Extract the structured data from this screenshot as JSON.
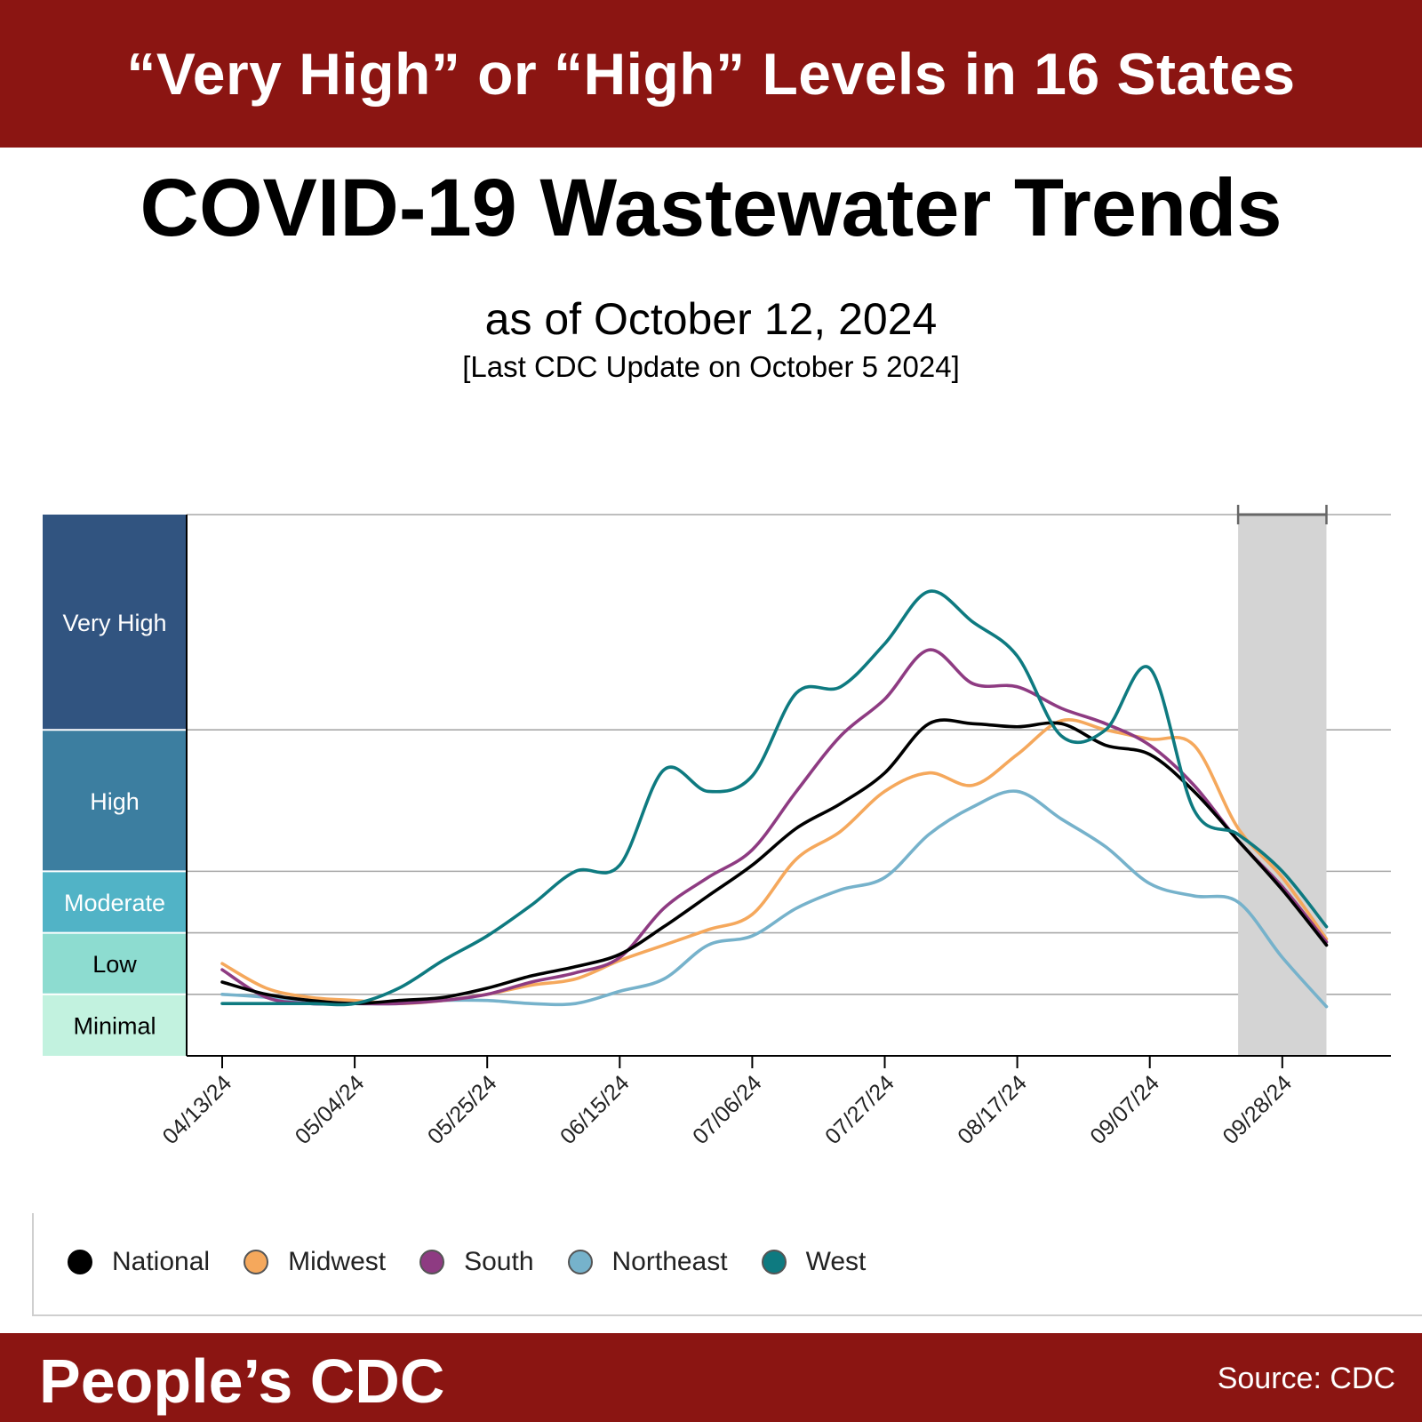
{
  "header": {
    "banner": "“Very High” or “High” Levels in 16 States"
  },
  "title": "COVID-19 Wastewater Trends",
  "subtitle": "as of October 12, 2024",
  "update_note": "[Last CDC Update on October 5 2024]",
  "footer": {
    "brand": "People’s CDC",
    "source": "Source: CDC"
  },
  "colors": {
    "banner": "#8b1512",
    "National": "#000000",
    "Midwest": "#f5a85c",
    "South": "#8e3b82",
    "Northeast": "#76b2cb",
    "West": "#0e7a80"
  },
  "chart_data": {
    "type": "line",
    "y_levels": [
      {
        "label": "Very High",
        "color": "#315480",
        "text_color": "#ffffff",
        "from": 6.5,
        "to": 10
      },
      {
        "label": "High",
        "color": "#3c7ea0",
        "text_color": "#ffffff",
        "from": 4.2,
        "to": 6.5
      },
      {
        "label": "Moderate",
        "color": "#51b3c6",
        "text_color": "#ffffff",
        "from": 3.2,
        "to": 4.2
      },
      {
        "label": "Low",
        "color": "#8ddcd0",
        "text_color": "#000000",
        "from": 2.2,
        "to": 3.2
      },
      {
        "label": "Minimal",
        "color": "#c2f2df",
        "text_color": "#000000",
        "from": 1.2,
        "to": 2.2
      }
    ],
    "ylim": [
      1.2,
      10
    ],
    "x_start": "2024-04-13",
    "x_ticks": [
      "04/13/24",
      "05/04/24",
      "05/25/24",
      "06/15/24",
      "07/06/24",
      "07/27/24",
      "08/17/24",
      "09/07/24",
      "09/28/24"
    ],
    "x": [
      "04/13/24",
      "04/20/24",
      "04/27/24",
      "05/04/24",
      "05/11/24",
      "05/18/24",
      "05/25/24",
      "06/01/24",
      "06/08/24",
      "06/15/24",
      "06/22/24",
      "06/29/24",
      "07/06/24",
      "07/13/24",
      "07/20/24",
      "07/27/24",
      "08/03/24",
      "08/10/24",
      "08/17/24",
      "08/24/24",
      "08/31/24",
      "09/07/24",
      "09/14/24",
      "09/21/24",
      "09/28/24",
      "10/05/24"
    ],
    "shaded_range": [
      "09/21/24",
      "10/05/24"
    ],
    "series": [
      {
        "name": "National",
        "values": [
          2.4,
          2.2,
          2.1,
          2.05,
          2.1,
          2.15,
          2.3,
          2.5,
          2.65,
          2.85,
          3.3,
          3.8,
          4.3,
          4.9,
          5.3,
          5.8,
          6.6,
          6.6,
          6.55,
          6.6,
          6.25,
          6.1,
          5.5,
          4.7,
          3.9,
          3.0
        ]
      },
      {
        "name": "Midwest",
        "values": [
          2.7,
          2.3,
          2.15,
          2.1,
          2.05,
          2.1,
          2.2,
          2.35,
          2.45,
          2.75,
          3.0,
          3.25,
          3.5,
          4.4,
          4.85,
          5.5,
          5.8,
          5.6,
          6.1,
          6.65,
          6.5,
          6.35,
          6.25,
          4.9,
          4.1,
          3.1
        ]
      },
      {
        "name": "South",
        "values": [
          2.6,
          2.15,
          2.05,
          2.05,
          2.05,
          2.1,
          2.2,
          2.4,
          2.55,
          2.8,
          3.6,
          4.1,
          4.55,
          5.5,
          6.4,
          7.0,
          7.8,
          7.25,
          7.2,
          6.85,
          6.6,
          6.25,
          5.6,
          4.7,
          3.95,
          3.05
        ]
      },
      {
        "name": "Northeast",
        "values": [
          2.2,
          2.15,
          2.05,
          2.05,
          2.05,
          2.1,
          2.1,
          2.05,
          2.05,
          2.25,
          2.45,
          3.0,
          3.15,
          3.6,
          3.9,
          4.1,
          4.8,
          5.25,
          5.5,
          5.05,
          4.6,
          4.0,
          3.8,
          3.7,
          2.8,
          2.0
        ]
      },
      {
        "name": "West",
        "values": [
          2.05,
          2.05,
          2.05,
          2.05,
          2.3,
          2.75,
          3.15,
          3.65,
          4.2,
          4.3,
          5.85,
          5.5,
          5.75,
          7.1,
          7.2,
          7.9,
          8.75,
          8.25,
          7.7,
          6.4,
          6.5,
          7.5,
          5.2,
          4.8,
          4.2,
          3.3
        ]
      }
    ]
  }
}
